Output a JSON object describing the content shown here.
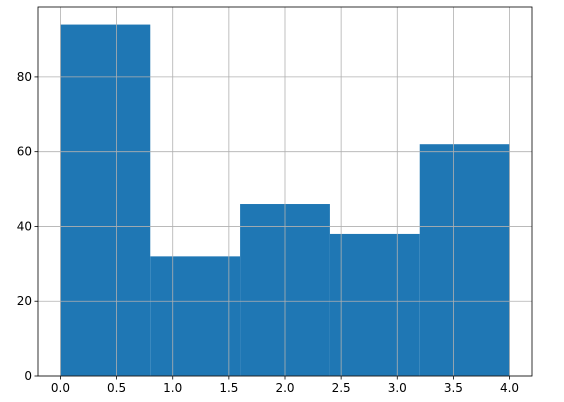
{
  "chart_data": {
    "type": "histogram",
    "bins": [
      0,
      0.8,
      1.6,
      2.4,
      3.2,
      4.0
    ],
    "values": [
      94,
      32,
      46,
      38,
      62
    ],
    "color": "#1f77b4",
    "xlim": [
      -0.2,
      4.2
    ],
    "xticks": [
      {
        "value": 0,
        "label": "0.0"
      },
      0.5,
      {
        "value": 1,
        "label": "1.0"
      },
      1.5,
      {
        "value": 2,
        "label": "2.0"
      },
      2.5,
      {
        "value": 3,
        "label": "3.0"
      },
      3.5,
      {
        "value": 4,
        "label": "4.0"
      }
    ],
    "ylim": [
      0,
      98.7
    ],
    "yticks": [
      0,
      20,
      40,
      60,
      80
    ],
    "grid": true
  }
}
